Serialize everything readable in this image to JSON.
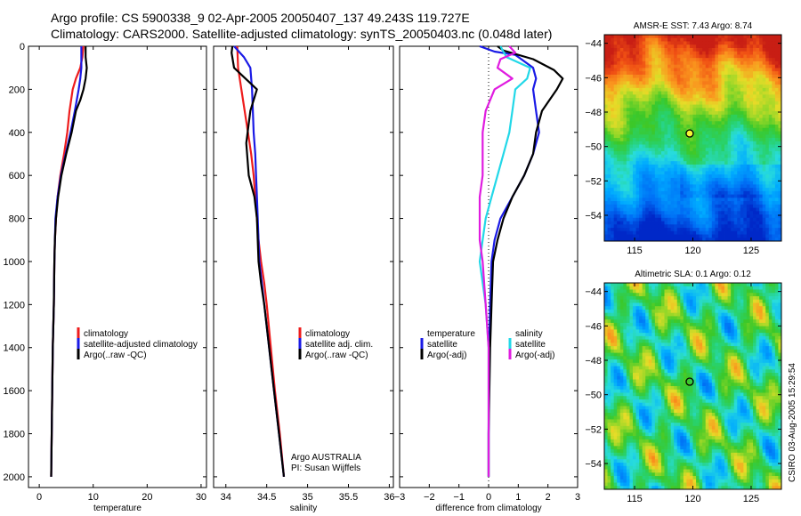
{
  "header": {
    "line1": "Argo profile: CS 5900338_9 02-Apr-2005 20050407_137 49.243S 119.727E",
    "line2": "Climatology: CARS2000. Satellite-adjusted climatology: synTS_20050403.nc (0.048d later)"
  },
  "chart_data": [
    {
      "type": "line",
      "id": "temperature",
      "title": "",
      "xlabel": "temperature",
      "ylabel": "",
      "xlim": [
        -2,
        31
      ],
      "ylim": [
        2050,
        0
      ],
      "xticks": [
        0,
        10,
        20,
        30
      ],
      "yticks": [
        0,
        200,
        400,
        600,
        800,
        1000,
        1200,
        1400,
        1600,
        1800,
        2000
      ],
      "legend_position": "lower-right",
      "series": [
        {
          "name": "climatology",
          "color": "#ee1c1c",
          "points": [
            [
              8.2,
              0
            ],
            [
              8.0,
              50
            ],
            [
              7.6,
              100
            ],
            [
              6.8,
              150
            ],
            [
              6.2,
              200
            ],
            [
              5.6,
              300
            ],
            [
              5.2,
              400
            ],
            [
              4.6,
              500
            ],
            [
              3.9,
              600
            ],
            [
              3.4,
              700
            ],
            [
              3.1,
              800
            ],
            [
              2.9,
              900
            ],
            [
              2.8,
              1000
            ],
            [
              2.7,
              1200
            ],
            [
              2.5,
              1400
            ],
            [
              2.4,
              1600
            ],
            [
              2.3,
              1800
            ],
            [
              2.2,
              2000
            ]
          ]
        },
        {
          "name": "satellite-adjusted climatology",
          "color": "#1a1ae6",
          "points": [
            [
              7.8,
              0
            ],
            [
              7.8,
              50
            ],
            [
              7.8,
              100
            ],
            [
              7.6,
              150
            ],
            [
              7.3,
              200
            ],
            [
              6.6,
              300
            ],
            [
              5.8,
              400
            ],
            [
              4.9,
              500
            ],
            [
              4.0,
              600
            ],
            [
              3.4,
              700
            ],
            [
              3.0,
              800
            ],
            [
              2.9,
              900
            ],
            [
              2.8,
              1000
            ],
            [
              2.7,
              1200
            ],
            [
              2.5,
              1400
            ],
            [
              2.4,
              1600
            ],
            [
              2.3,
              1800
            ],
            [
              2.2,
              2000
            ]
          ]
        },
        {
          "name": "Argo(..raw -QC)",
          "color": "#000000",
          "points": [
            [
              8.6,
              0
            ],
            [
              8.6,
              50
            ],
            [
              8.8,
              100
            ],
            [
              8.6,
              150
            ],
            [
              8.2,
              200
            ],
            [
              7.6,
              250
            ],
            [
              6.8,
              300
            ],
            [
              6.0,
              400
            ],
            [
              5.0,
              500
            ],
            [
              4.1,
              600
            ],
            [
              3.5,
              700
            ],
            [
              3.1,
              800
            ],
            [
              2.9,
              900
            ],
            [
              2.8,
              1000
            ],
            [
              2.7,
              1200
            ],
            [
              2.5,
              1400
            ],
            [
              2.4,
              1600
            ],
            [
              2.3,
              1800
            ],
            [
              2.2,
              2000
            ]
          ]
        }
      ],
      "annotations": []
    },
    {
      "type": "line",
      "id": "salinity",
      "title": "",
      "xlabel": "salinity",
      "ylabel": "",
      "xlim": [
        33.85,
        36.05
      ],
      "ylim": [
        2050,
        0
      ],
      "xticks": [
        34,
        34.5,
        35,
        35.5,
        36
      ],
      "yticks": [
        0,
        200,
        400,
        600,
        800,
        1000,
        1200,
        1400,
        1600,
        1800,
        2000
      ],
      "legend_position": "lower-right",
      "series": [
        {
          "name": "climatology",
          "color": "#ee1c1c",
          "points": [
            [
              34.14,
              0
            ],
            [
              34.15,
              100
            ],
            [
              34.19,
              200
            ],
            [
              34.23,
              300
            ],
            [
              34.27,
              400
            ],
            [
              34.31,
              500
            ],
            [
              34.34,
              600
            ],
            [
              34.36,
              700
            ],
            [
              34.38,
              800
            ],
            [
              34.4,
              900
            ],
            [
              34.43,
              1000
            ],
            [
              34.47,
              1100
            ],
            [
              34.5,
              1200
            ],
            [
              34.55,
              1400
            ],
            [
              34.6,
              1600
            ],
            [
              34.66,
              1800
            ],
            [
              34.71,
              2000
            ]
          ]
        },
        {
          "name": "satellite adj. clim.",
          "color": "#1a1ae6",
          "points": [
            [
              34.1,
              0
            ],
            [
              34.22,
              50
            ],
            [
              34.3,
              100
            ],
            [
              34.32,
              200
            ],
            [
              34.33,
              300
            ],
            [
              34.34,
              400
            ],
            [
              34.36,
              500
            ],
            [
              34.37,
              600
            ],
            [
              34.38,
              700
            ],
            [
              34.39,
              800
            ],
            [
              34.4,
              900
            ],
            [
              34.41,
              1000
            ],
            [
              34.44,
              1100
            ],
            [
              34.47,
              1200
            ],
            [
              34.53,
              1400
            ],
            [
              34.59,
              1600
            ],
            [
              34.65,
              1800
            ],
            [
              34.71,
              2000
            ]
          ]
        },
        {
          "name": "Argo(..raw -QC)",
          "color": "#000000",
          "points": [
            [
              34.08,
              0
            ],
            [
              34.07,
              30
            ],
            [
              34.1,
              100
            ],
            [
              34.24,
              150
            ],
            [
              34.38,
              200
            ],
            [
              34.3,
              300
            ],
            [
              34.25,
              450
            ],
            [
              34.28,
              600
            ],
            [
              34.35,
              700
            ],
            [
              34.38,
              800
            ],
            [
              34.39,
              900
            ],
            [
              34.4,
              1000
            ],
            [
              34.43,
              1100
            ],
            [
              34.47,
              1200
            ],
            [
              34.53,
              1400
            ],
            [
              34.59,
              1600
            ],
            [
              34.65,
              1800
            ],
            [
              34.71,
              2000
            ]
          ]
        }
      ],
      "annotations": [
        "Argo AUSTRALIA",
        "PI: Susan Wijffels"
      ]
    },
    {
      "type": "line",
      "id": "difference",
      "title": "",
      "xlabel": "difference from climatology",
      "ylabel": "",
      "xlim": [
        -3,
        3
      ],
      "ylim": [
        2050,
        0
      ],
      "xticks": [
        -3,
        -2,
        -1,
        0,
        1,
        2,
        3
      ],
      "yticks": [
        0,
        200,
        400,
        600,
        800,
        1000,
        1200,
        1400,
        1600,
        1800,
        2000
      ],
      "legend_position": "lower-center",
      "series": [
        {
          "name": "temperature satellite",
          "color": "#1a1ae6",
          "points": [
            [
              -0.3,
              0
            ],
            [
              0.2,
              25
            ],
            [
              0.9,
              40
            ],
            [
              1.1,
              60
            ],
            [
              1.5,
              100
            ],
            [
              1.6,
              150
            ],
            [
              1.5,
              200
            ],
            [
              1.6,
              300
            ],
            [
              1.7,
              400
            ],
            [
              1.5,
              500
            ],
            [
              1.2,
              600
            ],
            [
              0.8,
              700
            ],
            [
              0.4,
              800
            ],
            [
              0.2,
              900
            ],
            [
              0.1,
              1000
            ],
            [
              0.05,
              1200
            ],
            [
              0.02,
              1400
            ],
            [
              0.0,
              1800
            ],
            [
              0.0,
              2000
            ]
          ]
        },
        {
          "name": "temperature Argo(-adj)",
          "color": "#000000",
          "points": [
            [
              0.3,
              0
            ],
            [
              0.5,
              20
            ],
            [
              1.5,
              60
            ],
            [
              2.2,
              110
            ],
            [
              2.5,
              150
            ],
            [
              2.3,
              200
            ],
            [
              1.8,
              300
            ],
            [
              1.6,
              400
            ],
            [
              1.5,
              500
            ],
            [
              1.2,
              600
            ],
            [
              0.8,
              700
            ],
            [
              0.5,
              800
            ],
            [
              0.3,
              900
            ],
            [
              0.15,
              1000
            ],
            [
              0.1,
              1200
            ],
            [
              0.05,
              1400
            ],
            [
              0.0,
              1800
            ],
            [
              0.0,
              2000
            ]
          ]
        },
        {
          "name": "salinity satellite",
          "color": "#22d8e8",
          "points": [
            [
              0.4,
              0
            ],
            [
              0.6,
              50
            ],
            [
              1.4,
              100
            ],
            [
              1.3,
              150
            ],
            [
              0.9,
              200
            ],
            [
              0.8,
              300
            ],
            [
              0.7,
              400
            ],
            [
              0.5,
              500
            ],
            [
              0.3,
              600
            ],
            [
              0.1,
              700
            ],
            [
              -0.1,
              800
            ],
            [
              -0.2,
              900
            ],
            [
              -0.3,
              1000
            ],
            [
              -0.1,
              1200
            ],
            [
              0.0,
              1400
            ],
            [
              0.0,
              1600
            ],
            [
              0.0,
              1800
            ],
            [
              0.0,
              2000
            ]
          ]
        },
        {
          "name": "salinity Argo(-adj)",
          "color": "#e01ce0",
          "points": [
            [
              0.7,
              0
            ],
            [
              0.9,
              30
            ],
            [
              0.4,
              60
            ],
            [
              0.3,
              100
            ],
            [
              0.8,
              150
            ],
            [
              0.2,
              200
            ],
            [
              -0.1,
              300
            ],
            [
              -0.2,
              400
            ],
            [
              -0.2,
              500
            ],
            [
              -0.2,
              600
            ],
            [
              -0.3,
              700
            ],
            [
              -0.3,
              800
            ],
            [
              -0.3,
              900
            ],
            [
              -0.2,
              1000
            ],
            [
              -0.1,
              1200
            ],
            [
              0.0,
              1400
            ],
            [
              0.0,
              1600
            ],
            [
              0.0,
              1800
            ],
            [
              0.0,
              2000
            ]
          ]
        }
      ],
      "legend_columns": [
        {
          "header": "temperature",
          "entries": [
            "satellite",
            "Argo(-adj)"
          ]
        },
        {
          "header": "salinity",
          "entries": [
            "satellite",
            "Argo(-adj)"
          ]
        }
      ]
    },
    {
      "type": "heatmap",
      "id": "sst",
      "title": "AMSR-E SST: 7.43 Argo: 8.74",
      "xlim": [
        112.4,
        127.6
      ],
      "ylim": [
        -55.5,
        -43.5
      ],
      "xticks": [
        115,
        120,
        125
      ],
      "yticks": [
        -44,
        -46,
        -48,
        -50,
        -52,
        -54
      ],
      "marker": {
        "lon": 119.727,
        "lat": -49.243
      }
    },
    {
      "type": "heatmap",
      "id": "sla",
      "title": "Altimetric SLA: 0.1 Argo: 0.12",
      "xlim": [
        112.4,
        127.6
      ],
      "ylim": [
        -55.5,
        -43.5
      ],
      "xticks": [
        115,
        120,
        125
      ],
      "yticks": [
        -44,
        -46,
        -48,
        -50,
        -52,
        -54
      ],
      "marker": {
        "lon": 119.727,
        "lat": -49.243
      }
    }
  ],
  "footer": {
    "stamp": "CSIRO 03-Aug-2005 15:29:54"
  }
}
